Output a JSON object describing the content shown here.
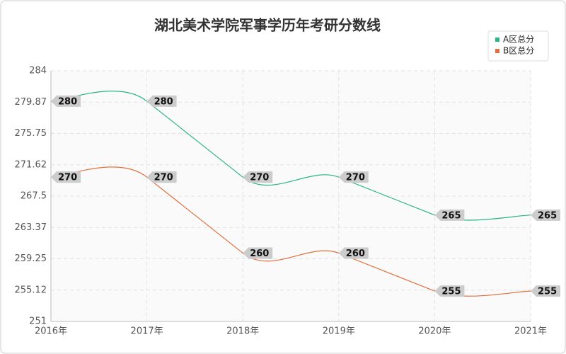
{
  "chart_data": {
    "type": "line",
    "title": "湖北美术学院军事学历年考研分数线",
    "categories": [
      "2016年",
      "2017年",
      "2018年",
      "2019年",
      "2020年",
      "2021年"
    ],
    "series": [
      {
        "name": "A区总分",
        "color": "#2bb38a",
        "values": [
          280,
          280,
          270,
          270,
          265,
          265
        ]
      },
      {
        "name": "B区总分",
        "color": "#e0703f",
        "values": [
          270,
          270,
          260,
          260,
          255,
          255
        ]
      }
    ],
    "ylim": [
      251,
      284
    ],
    "yticks": [
      251,
      255.12,
      259.25,
      263.37,
      267.5,
      271.62,
      275.75,
      279.87,
      284
    ],
    "grid": true,
    "smooth": true,
    "legend": "top-right"
  }
}
